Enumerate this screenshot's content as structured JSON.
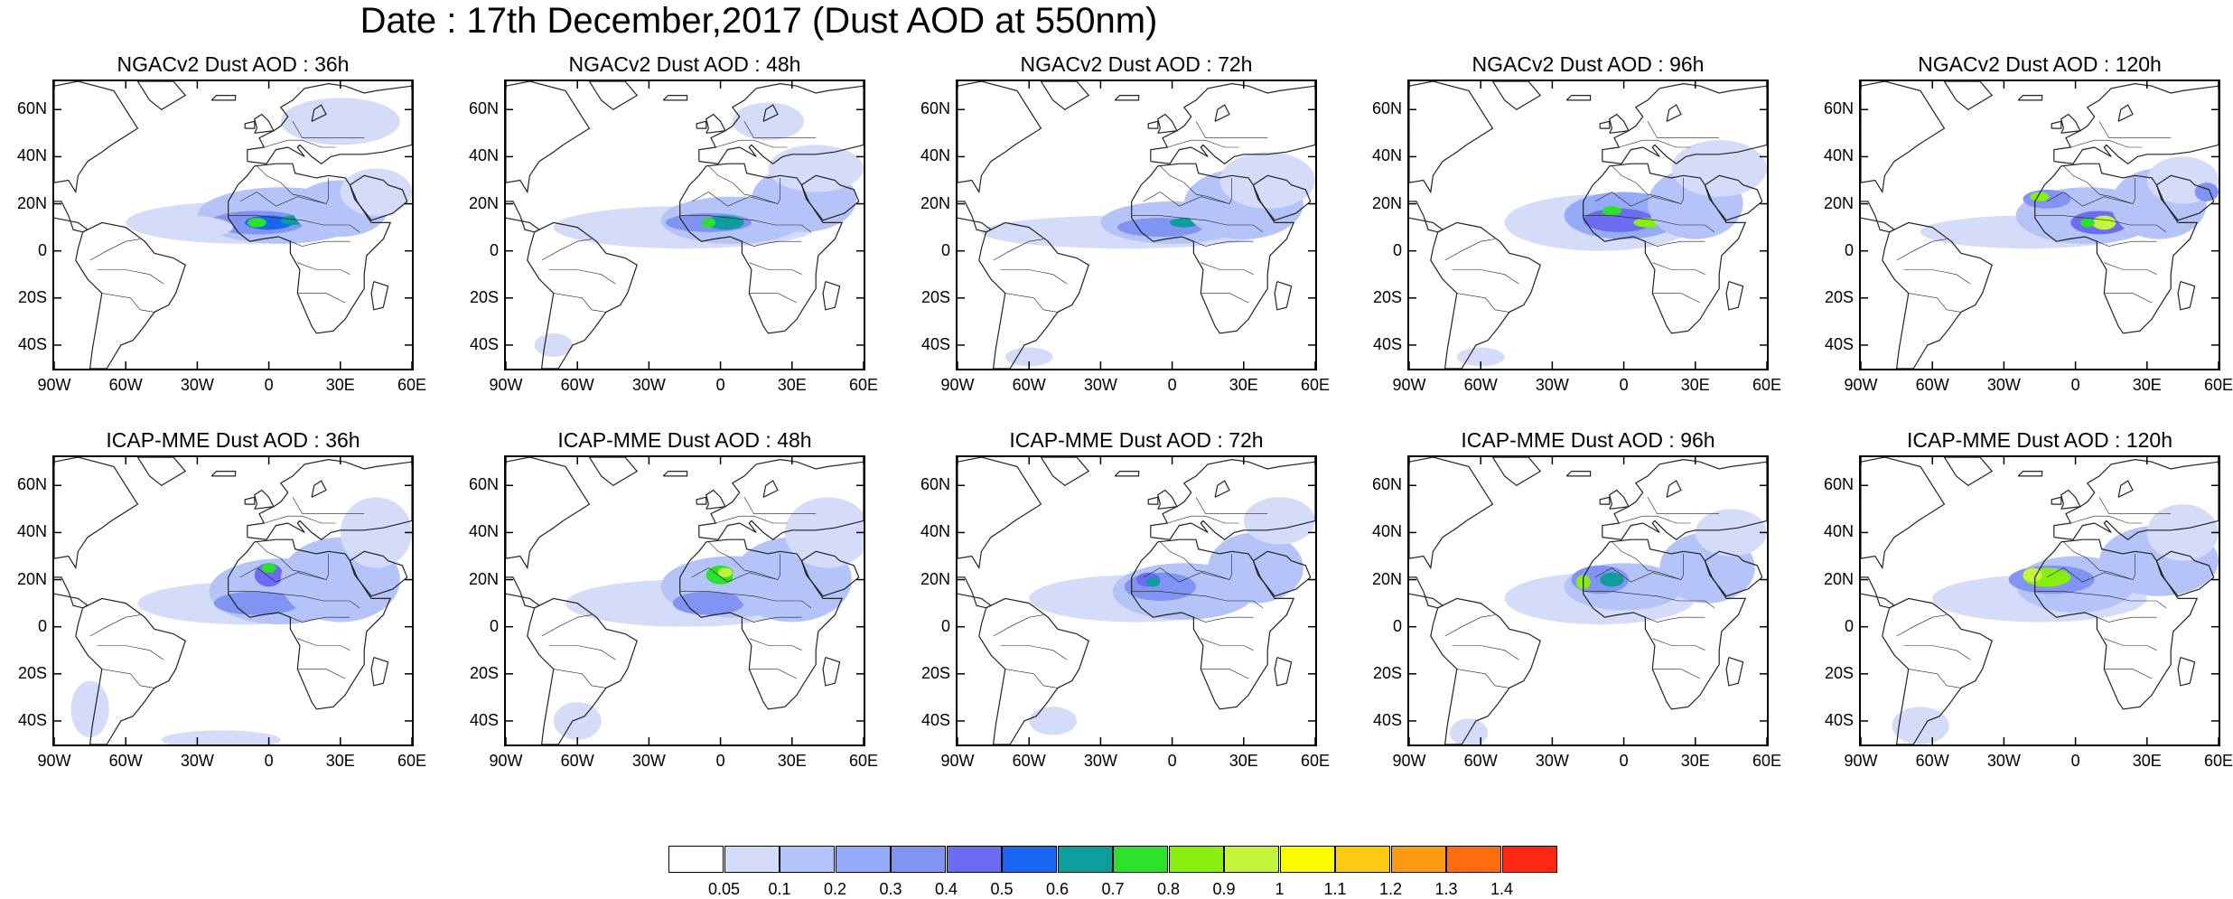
{
  "title": "Date : 17th December,2017 (Dust AOD at 550nm)",
  "colors": {
    "land_outline": "#222222",
    "background": "#ffffff"
  },
  "axes": {
    "lon_ticks": [
      "90W",
      "60W",
      "30W",
      "0",
      "30E",
      "60E"
    ],
    "lat_ticks": [
      "60N",
      "40N",
      "20N",
      "0",
      "20S",
      "40S"
    ]
  },
  "panels": [
    {
      "title": "NGACv2 Dust AOD : 36h",
      "model": "NGACv2",
      "lead": "36h"
    },
    {
      "title": "NGACv2 Dust AOD : 48h",
      "model": "NGACv2",
      "lead": "48h"
    },
    {
      "title": "NGACv2 Dust AOD : 72h",
      "model": "NGACv2",
      "lead": "72h"
    },
    {
      "title": "NGACv2 Dust AOD : 96h",
      "model": "NGACv2",
      "lead": "96h"
    },
    {
      "title": "NGACv2 Dust AOD : 120h",
      "model": "NGACv2",
      "lead": "120h"
    },
    {
      "title": "ICAP-MME Dust AOD : 36h",
      "model": "ICAP-MME",
      "lead": "36h"
    },
    {
      "title": "ICAP-MME Dust AOD : 48h",
      "model": "ICAP-MME",
      "lead": "48h"
    },
    {
      "title": "ICAP-MME Dust AOD : 72h",
      "model": "ICAP-MME",
      "lead": "72h"
    },
    {
      "title": "ICAP-MME Dust AOD : 96h",
      "model": "ICAP-MME",
      "lead": "96h"
    },
    {
      "title": "ICAP-MME Dust AOD : 120h",
      "model": "ICAP-MME",
      "lead": "120h"
    }
  ],
  "colorbar": {
    "labels": [
      "0.05",
      "0.1",
      "0.2",
      "0.3",
      "0.4",
      "0.5",
      "0.6",
      "0.7",
      "0.8",
      "0.9",
      "1",
      "1.1",
      "1.2",
      "1.3",
      "1.4"
    ],
    "colors": [
      "#ffffff",
      "#d4dcfa",
      "#b4c4f8",
      "#94acf8",
      "#8094f4",
      "#6c6cf0",
      "#1a66f0",
      "#0f9c9c",
      "#2ce02c",
      "#88ee10",
      "#c4f43c",
      "#fcfc00",
      "#fcc814",
      "#fc9c14",
      "#fc6c10",
      "#fc2814"
    ]
  }
}
